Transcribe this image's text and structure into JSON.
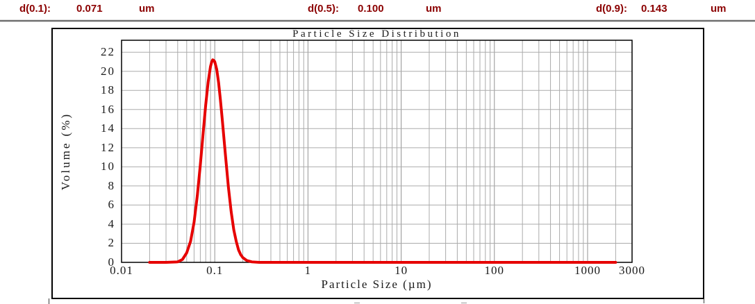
{
  "header": {
    "entries": [
      {
        "label": "d(0.1):",
        "value": "0.071",
        "unit": "um"
      },
      {
        "label": "d(0.5):",
        "value": "0.100",
        "unit": "um"
      },
      {
        "label": "d(0.9):",
        "value": "0.143",
        "unit": "um"
      }
    ]
  },
  "chart_data": {
    "type": "line",
    "title": "Particle Size Distribution",
    "xlabel": "Particle Size (µm)",
    "ylabel": "Volume (%)",
    "x_scale": "log",
    "x_range": [
      0.01,
      3000
    ],
    "y_range": [
      0,
      23.25
    ],
    "x_tick_labels": [
      "0.01",
      "0.1",
      "1",
      "10",
      "100",
      "1000",
      "3000"
    ],
    "x_tick_values": [
      0.01,
      0.1,
      1,
      10,
      100,
      1000,
      3000
    ],
    "y_ticks": [
      0,
      2,
      4,
      6,
      8,
      10,
      12,
      14,
      16,
      18,
      20,
      22
    ],
    "grid": "log minor vertical gridlines each decade; horizontal gridlines every 2%",
    "legend": "none",
    "series": [
      {
        "name": "volume-distribution",
        "peak_x_um": 0.095,
        "peak_y_pct": 21.2,
        "points": [
          [
            0.02,
            0
          ],
          [
            0.03,
            0
          ],
          [
            0.04,
            0.05
          ],
          [
            0.045,
            0.3
          ],
          [
            0.05,
            1.0
          ],
          [
            0.055,
            2.2
          ],
          [
            0.06,
            4.2
          ],
          [
            0.065,
            7.0
          ],
          [
            0.07,
            10.2
          ],
          [
            0.075,
            13.5
          ],
          [
            0.08,
            16.5
          ],
          [
            0.085,
            18.9
          ],
          [
            0.09,
            20.5
          ],
          [
            0.0925,
            20.95
          ],
          [
            0.095,
            21.2
          ],
          [
            0.0975,
            21.15
          ],
          [
            0.1,
            21.0
          ],
          [
            0.105,
            20.2
          ],
          [
            0.11,
            18.8
          ],
          [
            0.115,
            17.0
          ],
          [
            0.12,
            15.1
          ],
          [
            0.13,
            11.3
          ],
          [
            0.14,
            7.9
          ],
          [
            0.15,
            5.3
          ],
          [
            0.16,
            3.4
          ],
          [
            0.17,
            2.2
          ],
          [
            0.18,
            1.3
          ],
          [
            0.19,
            0.8
          ],
          [
            0.2,
            0.5
          ],
          [
            0.22,
            0.2
          ],
          [
            0.25,
            0.05
          ],
          [
            0.3,
            0
          ],
          [
            0.5,
            0
          ],
          [
            1,
            0
          ],
          [
            2,
            0
          ],
          [
            5,
            0
          ],
          [
            10,
            0
          ],
          [
            20,
            0
          ],
          [
            50,
            0
          ],
          [
            100,
            0
          ],
          [
            200,
            0
          ],
          [
            500,
            0
          ],
          [
            1000,
            0
          ],
          [
            2000,
            0
          ]
        ]
      }
    ]
  },
  "colors": {
    "curve": "#e60000",
    "header_text": "#8b0000",
    "grid_minor": "#ababab",
    "grid_major": "#939393",
    "plot_border": "#000000",
    "panel_border": "#000000",
    "separator": "#6f6f6f"
  }
}
